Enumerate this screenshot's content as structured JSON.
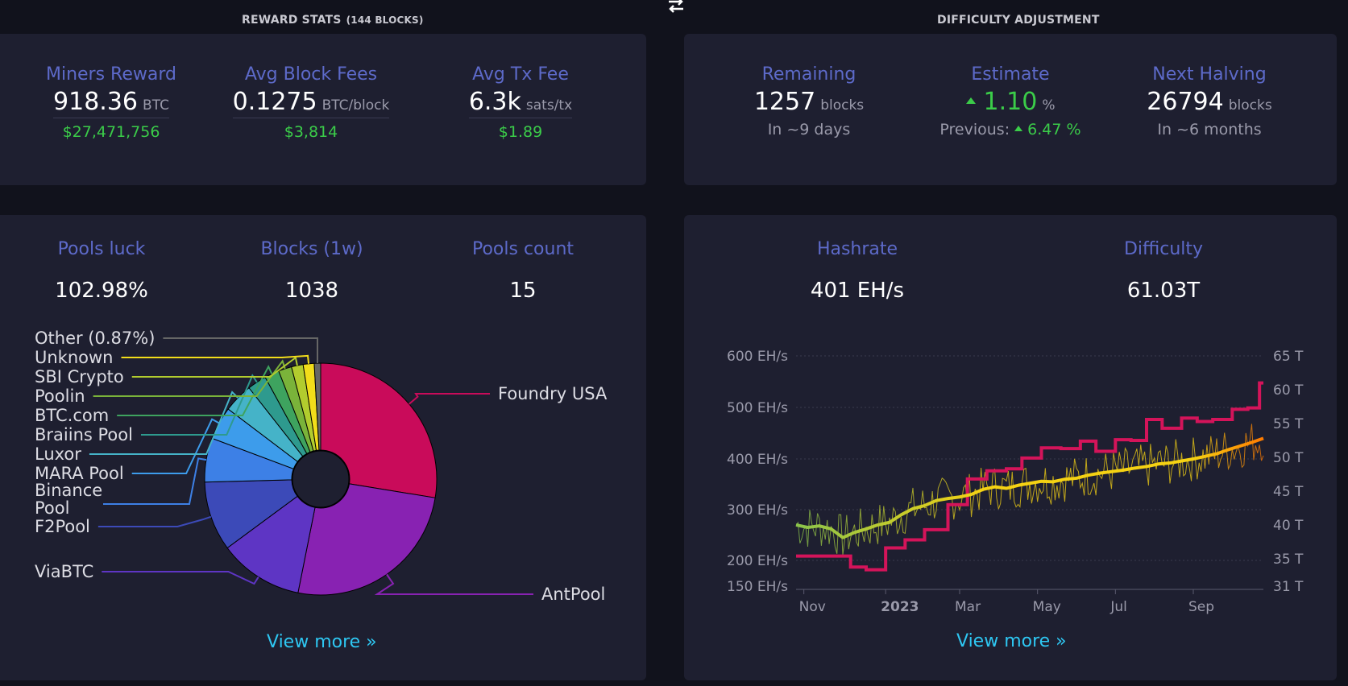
{
  "reward_stats": {
    "title": "REWARD STATS",
    "title_note": "(144 BLOCKS)",
    "miners_reward": {
      "label": "Miners Reward",
      "value": "918.36",
      "unit": "BTC",
      "fiat": "$27,471,756"
    },
    "avg_block_fees": {
      "label": "Avg Block Fees",
      "value": "0.1275",
      "unit": "BTC/block",
      "fiat": "$3,814"
    },
    "avg_tx_fee": {
      "label": "Avg Tx Fee",
      "value": "6.3k",
      "unit": "sats/tx",
      "fiat": "$1.89"
    }
  },
  "difficulty_adjustment": {
    "title": "DIFFICULTY ADJUSTMENT",
    "remaining": {
      "label": "Remaining",
      "value": "1257",
      "unit": "blocks",
      "sub": "In ~9 days"
    },
    "estimate": {
      "label": "Estimate",
      "value": "1.10",
      "unit": "%",
      "previous_label": "Previous:",
      "previous_value": "6.47",
      "previous_unit": "%"
    },
    "next_halving": {
      "label": "Next Halving",
      "value": "26794",
      "unit": "blocks",
      "sub": "In ~6 months"
    }
  },
  "pools": {
    "pools_luck": {
      "label": "Pools luck",
      "value": "102.98%"
    },
    "blocks_1w": {
      "label": "Blocks (1w)",
      "value": "1038"
    },
    "pools_count": {
      "label": "Pools count",
      "value": "15"
    },
    "view_more": "View more »"
  },
  "mining": {
    "hashrate": {
      "label": "Hashrate",
      "value": "401 EH/s"
    },
    "difficulty": {
      "label": "Difficulty",
      "value": "61.03T"
    },
    "view_more": "View more »"
  },
  "chart_data": [
    {
      "type": "pie",
      "variant": "donut",
      "labels": [
        "Foundry USA",
        "AntPool",
        "ViaBTC",
        "F2Pool",
        "Binance Pool",
        "MARA Pool",
        "Luxor",
        "Braiins Pool",
        "BTC.com",
        "Poolin",
        "SBI Crypto",
        "Unknown",
        "Other (0.87%)"
      ],
      "values": [
        27.0,
        25.0,
        11.5,
        9.5,
        6.0,
        4.5,
        4.0,
        2.6,
        2.0,
        1.8,
        1.6,
        1.5,
        0.87
      ],
      "colors": [
        "#c90b5a",
        "#8822b2",
        "#5e35c4",
        "#3c4ab8",
        "#3d80e6",
        "#3d9ceb",
        "#45b3c8",
        "#2e9a8e",
        "#3ea35f",
        "#7ab33a",
        "#b2cc2e",
        "#f2dd1a",
        "#666666"
      ]
    },
    {
      "type": "line",
      "x_ticks": [
        "Nov",
        "2023",
        "Mar",
        "May",
        "Jul",
        "Sep"
      ],
      "y_left_ticks": [
        "600 EH/s",
        "500 EH/s",
        "400 EH/s",
        "300 EH/s",
        "200 EH/s",
        "150 EH/s"
      ],
      "y_left_values": [
        600,
        500,
        400,
        300,
        200,
        150
      ],
      "y_right_ticks": [
        "65 T",
        "60 T",
        "55 T",
        "50 T",
        "45 T",
        "40 T",
        "35 T",
        "31 T"
      ],
      "y_right_values": [
        65,
        60,
        55,
        50,
        45,
        40,
        35,
        31
      ],
      "x_range_months": [
        0,
        12
      ],
      "series": [
        {
          "axis": "left",
          "x": [
            0,
            0.3,
            0.6,
            0.9,
            1.2,
            1.5,
            1.8,
            2.1,
            2.4,
            2.7,
            3.0,
            3.3,
            3.6,
            3.9,
            4.2,
            4.5,
            4.8,
            5.1,
            5.4,
            5.7,
            6.0,
            6.3,
            6.6,
            6.9,
            7.2,
            7.5,
            7.8,
            8.1,
            8.4,
            8.7,
            9.0,
            9.3,
            9.6,
            9.9,
            10.2,
            10.5,
            10.8,
            11.1,
            11.4,
            11.7,
            12.0
          ],
          "values": [
            270,
            265,
            268,
            262,
            245,
            255,
            262,
            270,
            275,
            290,
            302,
            308,
            318,
            322,
            325,
            330,
            340,
            345,
            342,
            348,
            352,
            356,
            355,
            360,
            362,
            368,
            372,
            375,
            378,
            382,
            385,
            390,
            392,
            396,
            400,
            405,
            410,
            418,
            425,
            432,
            440
          ],
          "colors": [
            "#8ac44b",
            "#f5d213",
            "#ff7a00"
          ]
        },
        {
          "axis": "right",
          "x": [
            0,
            0.5,
            1.0,
            1.4,
            1.8,
            2.3,
            2.8,
            3.3,
            3.9,
            4.4,
            4.9,
            5.4,
            5.8,
            6.3,
            6.8,
            7.3,
            7.7,
            8.2,
            8.6,
            9.0,
            9.4,
            9.9,
            10.3,
            10.7,
            11.2,
            11.6,
            11.9
          ],
          "values": [
            35.4,
            35.4,
            35.4,
            33.8,
            33.4,
            36.6,
            37.8,
            39.3,
            43.0,
            46.8,
            48.0,
            48.3,
            49.9,
            51.4,
            51.3,
            52.4,
            50.9,
            52.6,
            52.5,
            55.6,
            54.3,
            55.8,
            55.3,
            55.6,
            57.1,
            57.3,
            61.0
          ],
          "color": "#d4145a"
        }
      ]
    }
  ]
}
